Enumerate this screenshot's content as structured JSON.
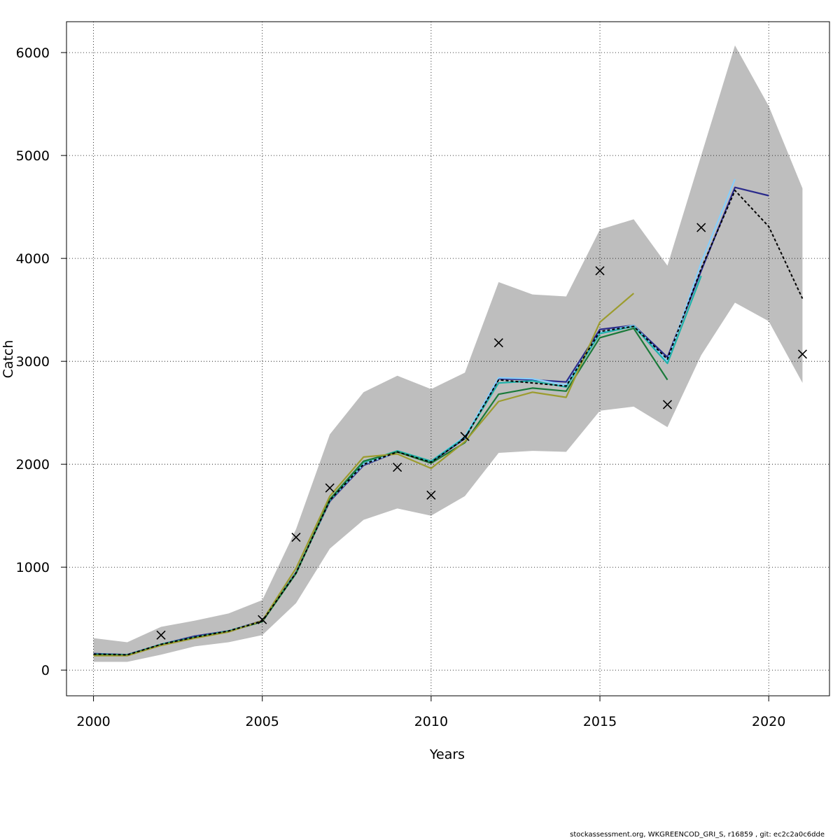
{
  "chart_data": {
    "type": "line",
    "xlabel": "Years",
    "ylabel": "Catch",
    "xlim": [
      1999.2,
      2021.8
    ],
    "ylim": [
      -250,
      6300
    ],
    "x_ticks": [
      2000,
      2005,
      2010,
      2015,
      2020
    ],
    "y_ticks": [
      0,
      1000,
      2000,
      3000,
      4000,
      5000,
      6000
    ],
    "grid": true,
    "confidence_band": {
      "color": "#bebebe",
      "x": [
        2000,
        2001,
        2002,
        2003,
        2004,
        2005,
        2006,
        2007,
        2008,
        2009,
        2010,
        2011,
        2012,
        2013,
        2014,
        2015,
        2016,
        2017,
        2018,
        2019,
        2020,
        2021
      ],
      "lower": [
        80,
        80,
        150,
        230,
        270,
        340,
        650,
        1180,
        1460,
        1570,
        1500,
        1690,
        2110,
        2130,
        2120,
        2520,
        2560,
        2360,
        3060,
        3570,
        3390,
        2790
      ],
      "upper": [
        310,
        270,
        420,
        480,
        550,
        680,
        1370,
        2290,
        2700,
        2860,
        2730,
        2890,
        3770,
        3650,
        3630,
        4280,
        4380,
        3930,
        5000,
        6070,
        5480,
        4680
      ]
    },
    "observed": {
      "marker": "x",
      "color": "#000000",
      "x": [
        2002,
        2005,
        2006,
        2007,
        2009,
        2010,
        2011,
        2012,
        2015,
        2017,
        2018,
        2021
      ],
      "y": [
        340,
        490,
        1290,
        1770,
        1970,
        1700,
        2270,
        3180,
        3880,
        2580,
        4300,
        3070
      ]
    },
    "series": [
      {
        "color": "#2b2b8c",
        "dashed": false,
        "x": [
          2000,
          2001,
          2002,
          2003,
          2004,
          2005,
          2006,
          2007,
          2008,
          2009,
          2010,
          2011,
          2012,
          2013,
          2014,
          2015,
          2016,
          2017,
          2018,
          2019,
          2020
        ],
        "y": [
          160,
          150,
          250,
          330,
          380,
          480,
          950,
          1640,
          1990,
          2120,
          2020,
          2250,
          2830,
          2820,
          2800,
          3310,
          3350,
          3040,
          3880,
          4690,
          4610
        ]
      },
      {
        "color": "#87cefa",
        "dashed": false,
        "x": [
          2000,
          2001,
          2002,
          2003,
          2004,
          2005,
          2006,
          2007,
          2008,
          2009,
          2010,
          2011,
          2012,
          2013,
          2014,
          2015,
          2016,
          2017,
          2018,
          2019
        ],
        "y": [
          155,
          148,
          250,
          320,
          380,
          475,
          945,
          1650,
          2000,
          2120,
          2030,
          2270,
          2840,
          2830,
          2770,
          3280,
          3350,
          3000,
          3960,
          4770
        ]
      },
      {
        "color": "#20b2aa",
        "dashed": false,
        "x": [
          2000,
          2001,
          2002,
          2003,
          2004,
          2005,
          2006,
          2007,
          2008,
          2009,
          2010,
          2011,
          2012,
          2013,
          2014,
          2015,
          2016,
          2017,
          2018
        ],
        "y": [
          155,
          148,
          250,
          320,
          380,
          475,
          945,
          1650,
          2020,
          2130,
          2030,
          2260,
          2790,
          2810,
          2750,
          3270,
          3340,
          2980,
          3830
        ]
      },
      {
        "color": "#1a7a3a",
        "dashed": false,
        "x": [
          2000,
          2001,
          2002,
          2003,
          2004,
          2005,
          2006,
          2007,
          2008,
          2009,
          2010,
          2011,
          2012,
          2013,
          2014,
          2015,
          2016,
          2017
        ],
        "y": [
          150,
          145,
          245,
          315,
          375,
          470,
          940,
          1660,
          2030,
          2120,
          2010,
          2210,
          2680,
          2740,
          2710,
          3230,
          3320,
          2820
        ]
      },
      {
        "color": "#9c9c2e",
        "dashed": false,
        "x": [
          2000,
          2001,
          2002,
          2003,
          2004,
          2005,
          2006,
          2007,
          2008,
          2009,
          2010,
          2011,
          2012,
          2013,
          2014,
          2015,
          2016
        ],
        "y": [
          140,
          140,
          240,
          310,
          370,
          480,
          990,
          1690,
          2070,
          2100,
          1960,
          2220,
          2610,
          2700,
          2650,
          3380,
          3660
        ]
      },
      {
        "color": "#000000",
        "dashed": true,
        "x": [
          2000,
          2001,
          2002,
          2003,
          2004,
          2005,
          2006,
          2007,
          2008,
          2009,
          2010,
          2011,
          2012,
          2013,
          2014,
          2015,
          2016,
          2017,
          2018,
          2019,
          2020,
          2021
        ],
        "y": [
          155,
          148,
          250,
          320,
          380,
          475,
          945,
          1650,
          2000,
          2120,
          2020,
          2250,
          2820,
          2790,
          2760,
          3290,
          3340,
          3020,
          3900,
          4660,
          4310,
          3610
        ]
      }
    ]
  },
  "footer_text": "stockassessment.org, WKGREENCOD_GRI_S, r16859 , git: ec2c2a0c6dde"
}
